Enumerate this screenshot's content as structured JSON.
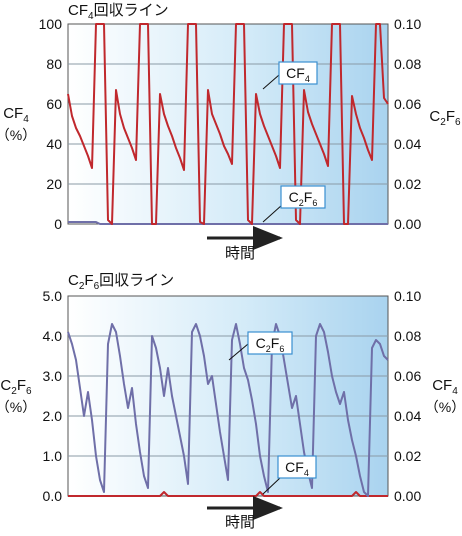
{
  "colors": {
    "cf4": "#c0282d",
    "c2f6": "#6f6fa8"
  },
  "chart_data": [
    {
      "type": "line",
      "title": {
        "main": "CF",
        "sub": "4",
        "tail": "回収ライン"
      },
      "xlabel": "時間",
      "x": [
        0,
        2,
        4,
        6,
        8,
        10,
        12,
        14,
        16,
        18,
        20,
        22,
        24,
        26,
        28,
        30,
        32,
        34,
        36,
        38,
        40,
        42,
        44,
        46,
        48,
        50,
        52,
        54,
        56,
        58,
        60,
        62,
        64,
        66,
        68,
        70,
        72,
        74,
        76,
        78,
        80,
        82,
        84,
        86,
        88,
        90,
        92,
        94,
        96,
        98,
        100,
        102,
        104,
        106,
        108,
        110,
        112,
        114,
        116,
        118,
        120,
        122,
        124,
        126,
        128,
        130,
        132,
        134,
        136,
        138,
        140,
        142,
        144,
        146,
        148,
        150,
        152,
        154,
        156,
        158,
        160
      ],
      "left_axis": {
        "label_top": "CF",
        "label_sub": "4",
        "label_unit": "（%）",
        "ylim": [
          0,
          100
        ],
        "ticks": [
          "0",
          "20",
          "40",
          "60",
          "80",
          "100"
        ]
      },
      "right_axis": {
        "label_top": "C",
        "label_sub1": "2",
        "label_mid": "F",
        "label_sub2": "6",
        "ylim": [
          0,
          0.1
        ],
        "ticks": [
          "0.00",
          "0.02",
          "0.04",
          "0.06",
          "0.08",
          "0.10"
        ]
      },
      "series": [
        {
          "name": "CF4",
          "axis": "left",
          "label": {
            "main": "CF",
            "sub": "4"
          },
          "values": [
            65,
            54,
            48,
            44,
            39,
            34,
            28,
            100,
            100,
            100,
            2,
            0,
            67,
            55,
            48,
            43,
            38,
            32,
            100,
            100,
            100,
            0,
            0,
            65,
            55,
            49,
            44,
            38,
            33,
            27,
            100,
            100,
            100,
            1,
            0,
            67,
            55,
            50,
            45,
            39,
            35,
            30,
            100,
            100,
            100,
            2,
            0,
            65,
            55,
            49,
            44,
            39,
            34,
            28,
            100,
            100,
            100,
            2,
            0,
            67,
            56,
            50,
            45,
            40,
            35,
            29,
            100,
            100,
            100,
            0,
            0,
            64,
            55,
            48,
            43,
            37,
            32,
            100,
            100,
            63,
            60
          ]
        },
        {
          "name": "C2F6",
          "axis": "right",
          "label": {
            "main": "C",
            "sub1": "2",
            "mid": "F",
            "sub2": "6"
          },
          "values": [
            0.001,
            0.001,
            0.001,
            0.001,
            0.001,
            0.001,
            0.001,
            0.001,
            0.0,
            0.0,
            0.0,
            0.0,
            0.0,
            0.0,
            0.0,
            0.0,
            0.0,
            0.0,
            0.0,
            0.0,
            0.0,
            0.0,
            0.0,
            0.0,
            0.0,
            0.0,
            0.0,
            0.0,
            0.0,
            0.0,
            0.0,
            0.0,
            0.0,
            0.0,
            0.0,
            0.0,
            0.0,
            0.0,
            0.0,
            0.0,
            0.0,
            0.0,
            0.0,
            0.0,
            0.0,
            0.0,
            0.0,
            0.0,
            0.0,
            0.0,
            0.0,
            0.0,
            0.0,
            0.0,
            0.0,
            0.0,
            0.0,
            0.0,
            0.0,
            0.0,
            0.0,
            0.0,
            0.0,
            0.0,
            0.0,
            0.0,
            0.0,
            0.0,
            0.0,
            0.0,
            0.0,
            0.0,
            0.0,
            0.0,
            0.0,
            0.0,
            0.0,
            0.0,
            0.0,
            0.0,
            0.0
          ]
        }
      ]
    },
    {
      "type": "line",
      "title": {
        "main": "C",
        "sub1": "2",
        "mid": "F",
        "sub2": "6",
        "tail": "回収ライン"
      },
      "xlabel": "時間",
      "x": [
        0,
        2,
        4,
        6,
        8,
        10,
        12,
        14,
        16,
        18,
        20,
        22,
        24,
        26,
        28,
        30,
        32,
        34,
        36,
        38,
        40,
        42,
        44,
        46,
        48,
        50,
        52,
        54,
        56,
        58,
        60,
        62,
        64,
        66,
        68,
        70,
        72,
        74,
        76,
        78,
        80,
        82,
        84,
        86,
        88,
        90,
        92,
        94,
        96,
        98,
        100,
        102,
        104,
        106,
        108,
        110,
        112,
        114,
        116,
        118,
        120,
        122,
        124,
        126,
        128,
        130,
        132,
        134,
        136,
        138,
        140,
        142,
        144,
        146,
        148,
        150,
        152,
        154,
        156,
        158,
        160
      ],
      "left_axis": {
        "label_top": "C",
        "label_sub1": "2",
        "label_mid": "F",
        "label_sub2": "6",
        "label_unit": "（%）",
        "ylim": [
          0,
          5.0
        ],
        "ticks": [
          "0.0",
          "1.0",
          "2.0",
          "3.0",
          "4.0",
          "5.0"
        ]
      },
      "right_axis": {
        "label_top": "CF",
        "label_sub": "4",
        "label_unit": "（%）",
        "ylim": [
          0,
          0.1
        ],
        "ticks": [
          "0.00",
          "0.02",
          "0.04",
          "0.06",
          "0.08",
          "0.10"
        ]
      },
      "series": [
        {
          "name": "C2F6",
          "axis": "left",
          "label": {
            "main": "C",
            "sub1": "2",
            "mid": "F",
            "sub2": "6"
          },
          "values": [
            4.1,
            3.8,
            3.4,
            2.7,
            2.0,
            2.6,
            1.9,
            1.0,
            0.4,
            0.1,
            3.8,
            4.3,
            4.1,
            3.5,
            2.8,
            2.2,
            2.7,
            1.8,
            1.1,
            0.5,
            0.2,
            4.0,
            3.7,
            3.2,
            2.5,
            3.2,
            2.5,
            2.0,
            1.5,
            1.0,
            0.3,
            4.1,
            4.3,
            4.0,
            3.5,
            2.8,
            3.0,
            2.3,
            1.6,
            1.0,
            0.4,
            3.9,
            4.3,
            3.8,
            3.2,
            2.9,
            2.4,
            1.8,
            1.0,
            0.5,
            0.1,
            3.8,
            4.3,
            4.0,
            3.4,
            2.8,
            2.2,
            2.5,
            1.8,
            1.1,
            0.6,
            0.2,
            4.0,
            4.3,
            4.1,
            3.6,
            3.0,
            2.6,
            2.3,
            2.6,
            1.9,
            1.4,
            1.0,
            0.5,
            0.1,
            0.0,
            3.7,
            3.9,
            3.8,
            3.5,
            3.4
          ]
        },
        {
          "name": "CF4",
          "axis": "right",
          "label": {
            "main": "CF",
            "sub": "4"
          },
          "values": [
            0.0,
            0.0,
            0.0,
            0.0,
            0.0,
            0.0,
            0.0,
            0.0,
            0.0,
            0.0,
            0.0,
            0.0,
            0.0,
            0.0,
            0.0,
            0.0,
            0.0,
            0.0,
            0.0,
            0.0,
            0.0,
            0.0,
            0.0,
            0.0,
            0.002,
            0.0,
            0.0,
            0.0,
            0.0,
            0.0,
            0.0,
            0.0,
            0.0,
            0.0,
            0.0,
            0.0,
            0.0,
            0.0,
            0.0,
            0.0,
            0.0,
            0.0,
            0.0,
            0.0,
            0.0,
            0.0,
            0.0,
            0.0,
            0.002,
            0.0,
            0.0,
            0.0,
            0.0,
            0.0,
            0.0,
            0.0,
            0.0,
            0.0,
            0.0,
            0.0,
            0.0,
            0.0,
            0.0,
            0.0,
            0.0,
            0.0,
            0.0,
            0.0,
            0.0,
            0.0,
            0.0,
            0.0,
            0.002,
            0.0,
            0.0,
            0.0,
            0.0,
            0.0,
            0.0,
            0.0,
            0.0
          ]
        }
      ]
    }
  ]
}
